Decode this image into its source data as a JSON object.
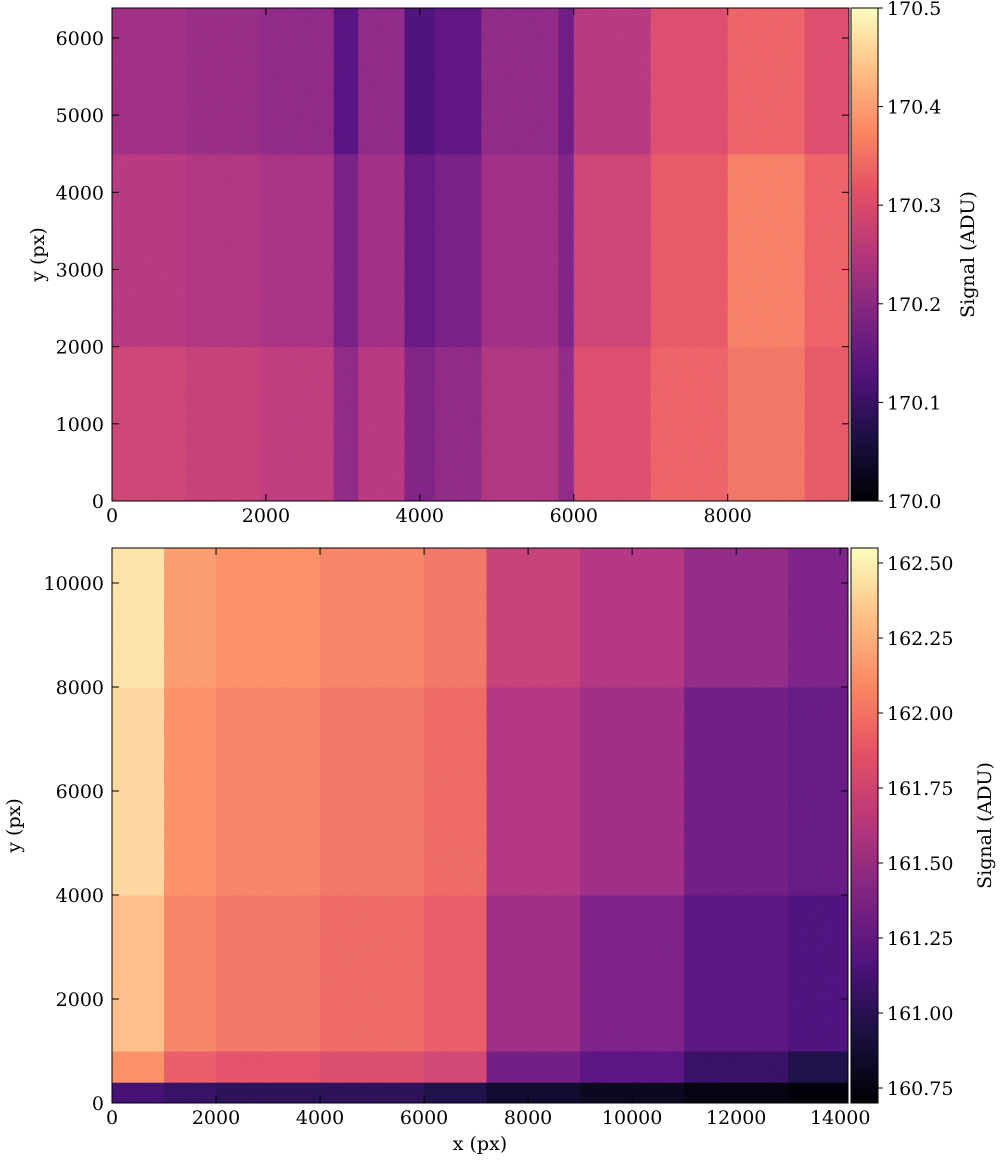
{
  "chart_data": [
    {
      "type": "heatmap",
      "ylabel": "y (px)",
      "colormap": "magma",
      "xlim": [
        0,
        9576
      ],
      "ylim": [
        0,
        6388
      ],
      "xticks": [
        0,
        2000,
        4000,
        6000,
        8000
      ],
      "yticks": [
        0,
        1000,
        2000,
        3000,
        4000,
        5000,
        6000
      ],
      "x_edges": [
        0,
        960,
        1920,
        2880,
        3200,
        3800,
        4200,
        4800,
        5800,
        6000,
        7000,
        8000,
        9000,
        9576
      ],
      "y_edges": [
        0,
        2000,
        4500,
        6388
      ],
      "z": [
        [
          170.28,
          170.27,
          170.26,
          170.2,
          170.25,
          170.18,
          170.2,
          170.24,
          170.2,
          170.3,
          170.33,
          170.35,
          170.32
        ],
        [
          170.25,
          170.24,
          170.23,
          170.17,
          170.22,
          170.15,
          170.17,
          170.22,
          170.18,
          170.28,
          170.32,
          170.36,
          170.33
        ],
        [
          170.22,
          170.21,
          170.2,
          170.13,
          170.2,
          170.12,
          170.14,
          170.2,
          170.16,
          170.25,
          170.3,
          170.33,
          170.3
        ]
      ],
      "colorbar": {
        "label": "Signal (ADU)",
        "lim": [
          170,
          170.5
        ],
        "ticks": [
          {
            "value": 170,
            "label": "170.0"
          },
          170.1,
          170.2,
          170.3,
          170.4,
          170.5
        ]
      }
    },
    {
      "type": "heatmap",
      "xlabel": "x (px)",
      "ylabel": "y (px)",
      "colormap": "magma",
      "xlim": [
        0,
        14150
      ],
      "ylim": [
        0,
        10673
      ],
      "xticks": [
        0,
        2000,
        4000,
        6000,
        8000,
        10000,
        12000,
        14000
      ],
      "yticks": [
        0,
        2000,
        4000,
        6000,
        8000,
        10000
      ],
      "x_edges": [
        0,
        1000,
        2000,
        4000,
        6000,
        7200,
        9000,
        11000,
        13000,
        14150
      ],
      "y_edges": [
        0,
        400,
        1000,
        4000,
        8000,
        10673
      ],
      "z": [
        [
          161.1,
          161.05,
          161.0,
          161.0,
          160.95,
          160.85,
          160.8,
          160.75,
          160.72
        ],
        [
          162.1,
          161.9,
          161.85,
          161.8,
          161.75,
          161.3,
          161.2,
          161.05,
          160.95
        ],
        [
          162.3,
          162.05,
          162.0,
          161.95,
          161.9,
          161.5,
          161.35,
          161.2,
          161.15
        ],
        [
          162.4,
          162.1,
          162.05,
          162.0,
          161.95,
          161.6,
          161.5,
          161.3,
          161.25
        ],
        [
          162.45,
          162.15,
          162.1,
          162.05,
          162.0,
          161.7,
          161.6,
          161.45,
          161.35
        ]
      ],
      "colorbar": {
        "label": "Signal (ADU)",
        "lim": [
          160.7,
          162.55
        ],
        "ticks": [
          160.75,
          {
            "value": 161,
            "label": "161.00"
          },
          161.25,
          {
            "value": 161.5,
            "label": "161.50"
          },
          161.75,
          {
            "value": 162,
            "label": "162.00"
          },
          162.25,
          {
            "value": 162.5,
            "label": "162.50"
          }
        ]
      }
    }
  ]
}
